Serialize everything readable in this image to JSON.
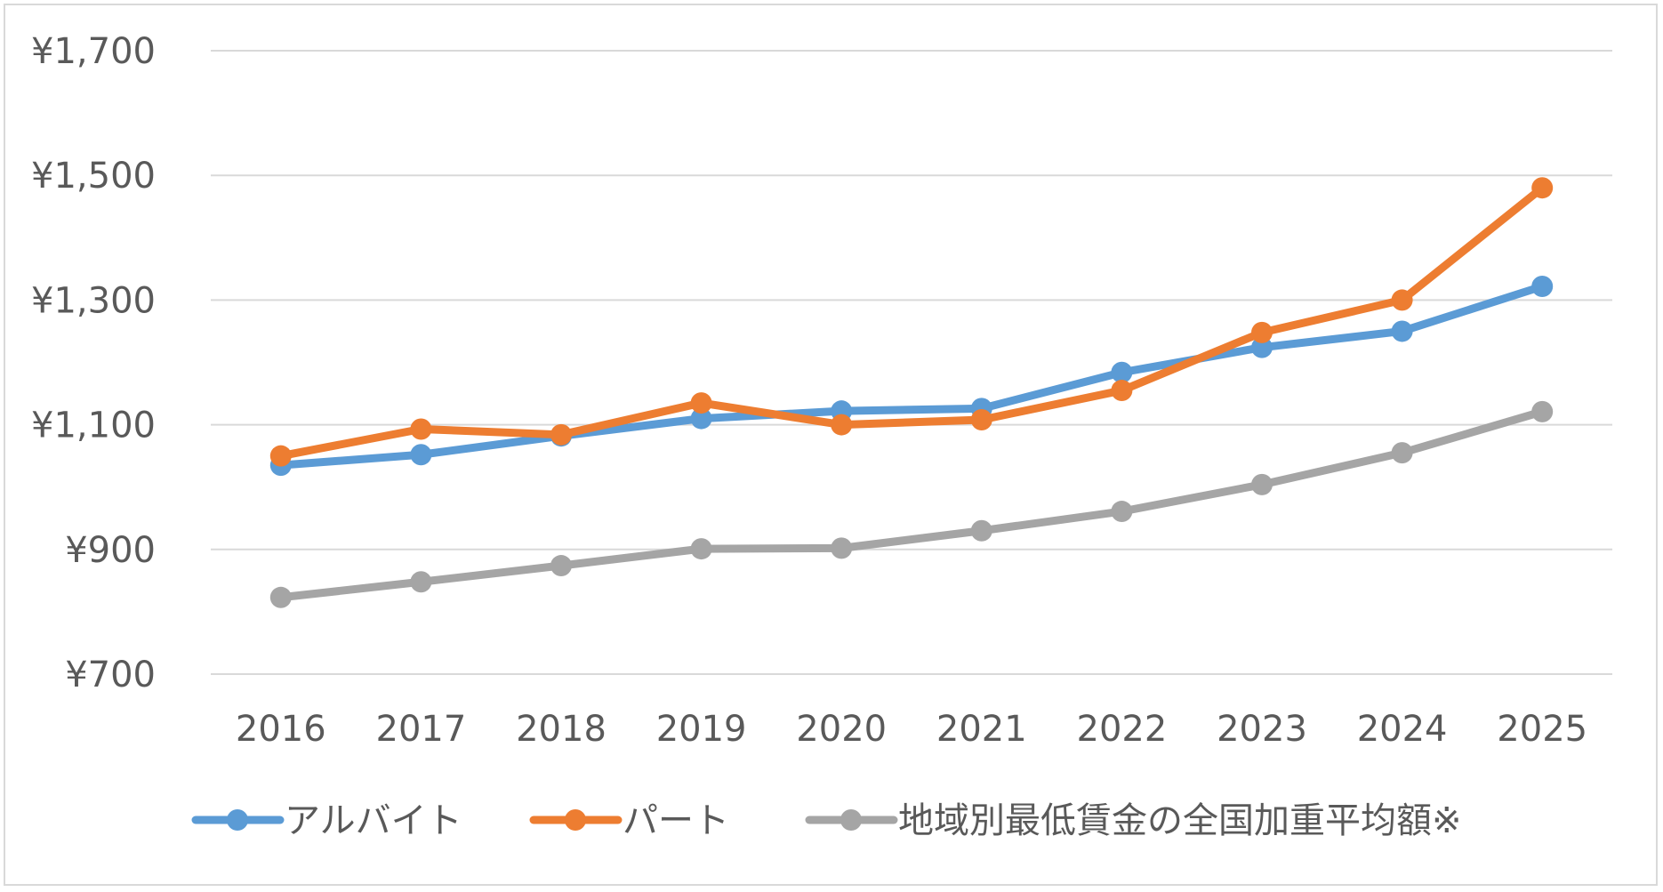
{
  "chart_data": {
    "type": "line",
    "title": "",
    "xlabel": "",
    "ylabel": "",
    "categories": [
      "2016",
      "2017",
      "2018",
      "2019",
      "2020",
      "2021",
      "2022",
      "2023",
      "2024",
      "2025"
    ],
    "ylim": [
      700,
      1700
    ],
    "yticks": [
      700,
      900,
      1100,
      1300,
      1500,
      1700
    ],
    "ytick_labels": [
      "¥700",
      "¥900",
      "¥1,100",
      "¥1,300",
      "¥1,500",
      "¥1,700"
    ],
    "grid": true,
    "legend_position": "bottom",
    "series": [
      {
        "name": "アルバイト",
        "color": "#5b9bd5",
        "values": [
          1035,
          1052,
          1082,
          1110,
          1122,
          1126,
          1184,
          1224,
          1250,
          1322
        ]
      },
      {
        "name": "パート",
        "color": "#ed7d31",
        "values": [
          1050,
          1093,
          1084,
          1135,
          1100,
          1108,
          1155,
          1248,
          1300,
          1480
        ]
      },
      {
        "name": "地域別最低賃金の全国加重平均額※",
        "color": "#a5a5a5",
        "values": [
          823,
          848,
          874,
          901,
          902,
          930,
          961,
          1004,
          1055,
          1121
        ]
      }
    ]
  }
}
